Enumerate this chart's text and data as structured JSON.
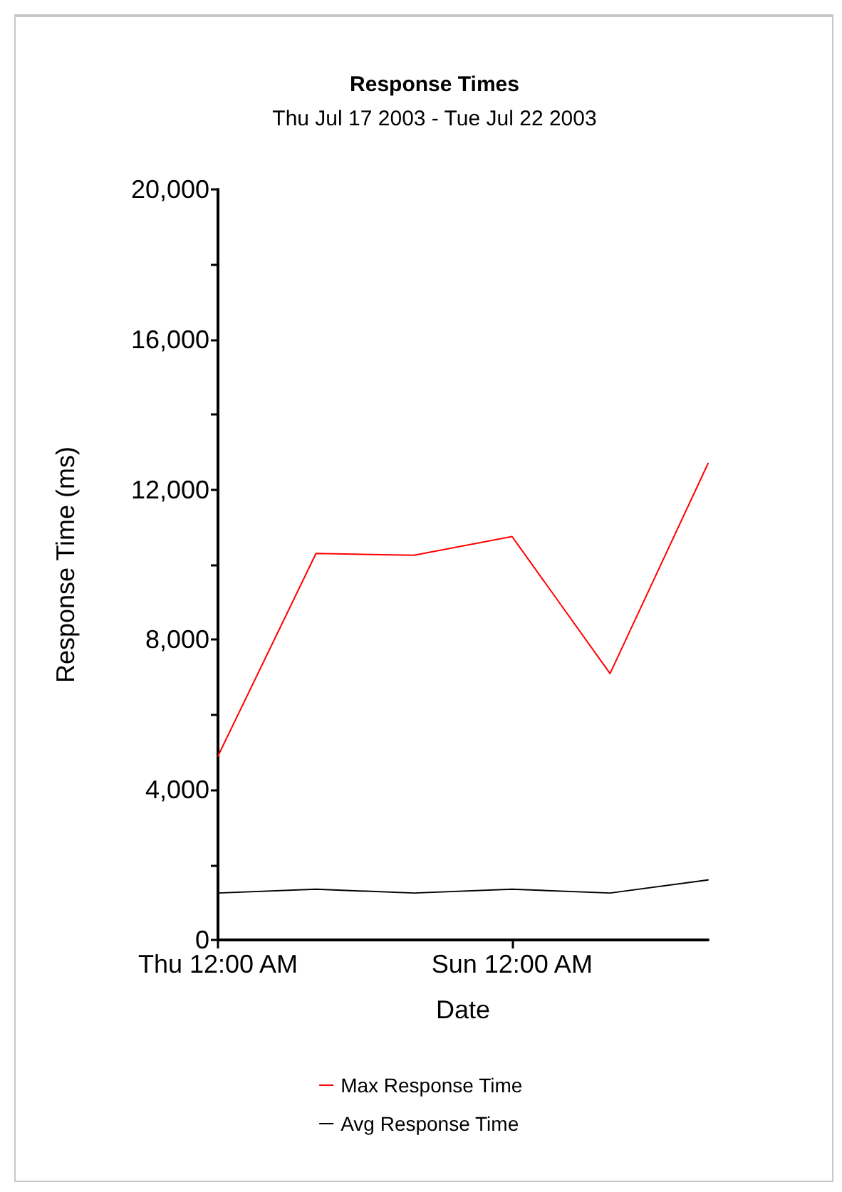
{
  "chart_data": {
    "type": "line",
    "title": "Response Times",
    "subtitle": "Thu Jul 17 2003 - Tue Jul 22 2003",
    "xlabel": "Date",
    "ylabel": "Response Time (ms)",
    "x": [
      "2003-07-17",
      "2003-07-18",
      "2003-07-19",
      "2003-07-20",
      "2003-07-21",
      "2003-07-22"
    ],
    "series": [
      {
        "name": "Max Response Time",
        "color": "#ff0000",
        "values": [
          4900,
          10300,
          10250,
          10750,
          7100,
          12700
        ]
      },
      {
        "name": "Avg Response Time",
        "color": "#000000",
        "values": [
          1250,
          1350,
          1250,
          1350,
          1250,
          1600
        ]
      }
    ],
    "xlim": [
      "2003-07-17",
      "2003-07-22"
    ],
    "xticks": [
      {
        "value": "2003-07-17",
        "label": "Thu 12:00 AM"
      },
      {
        "value": "2003-07-20",
        "label": "Sun 12:00 AM"
      }
    ],
    "ylim": [
      0,
      20000
    ],
    "yticks": [
      0,
      {
        "value": 2000,
        "label": null
      },
      {
        "value": 4000,
        "label": "4,000"
      },
      {
        "value": 6000,
        "label": null
      },
      {
        "value": 8000,
        "label": "8,000"
      },
      {
        "value": 10000,
        "label": null
      },
      {
        "value": 12000,
        "label": "12,000"
      },
      {
        "value": 14000,
        "label": null
      },
      {
        "value": 16000,
        "label": "16,000"
      },
      {
        "value": 18000,
        "label": null
      },
      {
        "value": 20000,
        "label": "20,000"
      }
    ],
    "grid": false,
    "legend": "bottom",
    "marker": "none",
    "line_style": "solid"
  }
}
